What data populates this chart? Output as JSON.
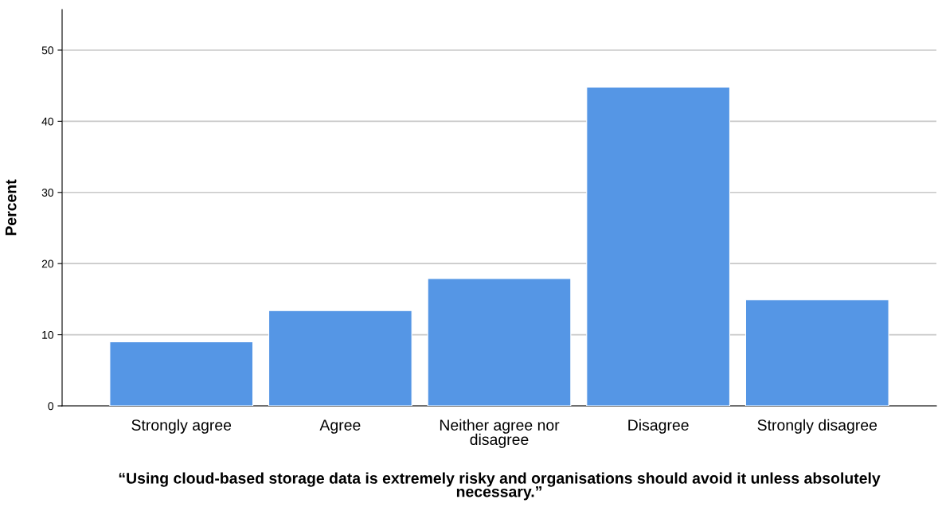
{
  "chart_data": {
    "type": "bar",
    "xlabel": "“Using cloud-based storage data is extremely risky and organisations should avoid it unless absolutely necessary.”",
    "ylabel": "Percent",
    "categories": [
      "Strongly agree",
      "Agree",
      "Neither agree nor disagree",
      "Disagree",
      "Strongly disagree"
    ],
    "values": [
      9.0,
      13.4,
      17.9,
      44.8,
      14.9
    ],
    "color": "#5596e5",
    "ylim": [
      0,
      55.7
    ],
    "yticks": [
      0,
      10,
      20,
      30,
      40,
      50
    ],
    "grid": "y"
  }
}
